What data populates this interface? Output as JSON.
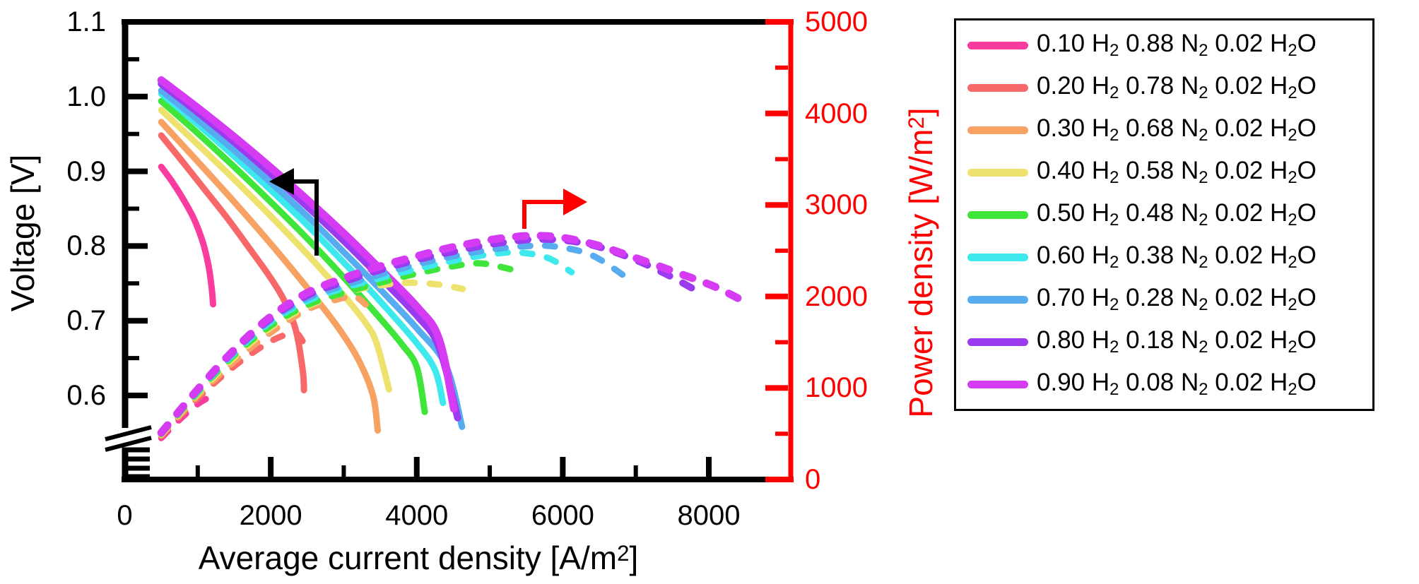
{
  "chart_data": {
    "type": "line",
    "title": "",
    "description": "Fuel cell polarization curves (solid, left axis) and power density curves (dashed, right axis) for varying anode gas compositions",
    "x_axis": {
      "label_parts": [
        [
          "Average current density [A/m",
          ""
        ],
        [
          "2",
          "sup"
        ],
        [
          "]",
          ""
        ]
      ],
      "range": [
        0,
        9120
      ],
      "major_tick_values": [
        0,
        2000,
        4000,
        6000,
        8000
      ],
      "minor_tick_values": [
        1000,
        3000,
        5000,
        7000
      ],
      "tick_labels": [
        "0",
        "2000",
        "4000",
        "6000",
        "8000"
      ]
    },
    "y_left_axis": {
      "label": "Voltage [V]",
      "color": "#000000",
      "visible_range": [
        0.6,
        1.1
      ],
      "major_tick_values": [
        1.1,
        1.0,
        0.9,
        0.8,
        0.7,
        0.6
      ],
      "minor_tick_values": [
        1.05,
        0.95,
        0.85,
        0.75,
        0.65
      ],
      "tick_labels": [
        "1.1",
        "1.0",
        "0.9",
        "0.8",
        "0.7",
        "0.6"
      ],
      "axis_break_below": 0.6
    },
    "y_right_axis": {
      "label_parts": [
        [
          "Power density [W/m",
          ""
        ],
        [
          "2",
          "sup"
        ],
        [
          "]",
          ""
        ]
      ],
      "color": "#FE0000",
      "range": [
        0,
        5000
      ],
      "major_tick_values": [
        0,
        1000,
        2000,
        3000,
        4000,
        5000
      ],
      "minor_tick_values": [
        500,
        1500,
        2500,
        3500,
        4500
      ],
      "tick_labels": [
        "0",
        "1000",
        "2000",
        "3000",
        "4000",
        "5000"
      ]
    },
    "annotations": [
      {
        "type": "arrow",
        "color": "#000000",
        "indicates": "solid curves read left voltage axis"
      },
      {
        "type": "arrow",
        "color": "#FE0000",
        "indicates": "dashed curves read right power axis"
      }
    ],
    "series": [
      {
        "label_parts": [
          [
            "0.10 H",
            ""
          ],
          [
            "2",
            "sub"
          ],
          [
            " 0.88 N",
            ""
          ],
          [
            "2",
            "sub"
          ],
          [
            " 0.02 H",
            ""
          ],
          [
            "2",
            "sub"
          ],
          [
            "O",
            ""
          ]
        ],
        "color": "#FA3C9E",
        "line_width": 9,
        "voltage_points": [
          [
            500,
            0.906
          ],
          [
            650,
            0.886
          ],
          [
            800,
            0.863
          ],
          [
            950,
            0.836
          ],
          [
            1070,
            0.805
          ],
          [
            1145,
            0.775
          ],
          [
            1190,
            0.745
          ],
          [
            1210,
            0.722
          ]
        ],
        "power_points": [
          [
            500,
            453
          ],
          [
            650,
            576
          ],
          [
            800,
            690
          ],
          [
            950,
            794
          ],
          [
            1070,
            861
          ],
          [
            1145,
            887
          ],
          [
            1210,
            872
          ]
        ]
      },
      {
        "label_parts": [
          [
            "0.20 H",
            ""
          ],
          [
            "2",
            "sub"
          ],
          [
            " 0.78 N",
            ""
          ],
          [
            "2",
            "sub"
          ],
          [
            " 0.02 H",
            ""
          ],
          [
            "2",
            "sub"
          ],
          [
            "O",
            ""
          ]
        ],
        "color": "#F86868",
        "line_width": 9,
        "voltage_points": [
          [
            500,
            0.948
          ],
          [
            800,
            0.912
          ],
          [
            1100,
            0.875
          ],
          [
            1400,
            0.838
          ],
          [
            1700,
            0.798
          ],
          [
            2000,
            0.757
          ],
          [
            2200,
            0.724
          ],
          [
            2350,
            0.685
          ],
          [
            2440,
            0.632
          ],
          [
            2455,
            0.607
          ]
        ],
        "power_points": [
          [
            500,
            474
          ],
          [
            800,
            730
          ],
          [
            1100,
            962
          ],
          [
            1400,
            1173
          ],
          [
            1700,
            1357
          ],
          [
            2000,
            1510
          ],
          [
            2200,
            1580
          ],
          [
            2350,
            1600
          ],
          [
            2455,
            1488
          ]
        ]
      },
      {
        "label_parts": [
          [
            "0.30 H",
            ""
          ],
          [
            "2",
            "sub"
          ],
          [
            " 0.68 N",
            ""
          ],
          [
            "2",
            "sub"
          ],
          [
            " 0.02 H",
            ""
          ],
          [
            "2",
            "sub"
          ],
          [
            "O",
            ""
          ]
        ],
        "color": "#F7A263",
        "line_width": 9,
        "voltage_points": [
          [
            500,
            0.966
          ],
          [
            1000,
            0.913
          ],
          [
            1500,
            0.859
          ],
          [
            2000,
            0.803
          ],
          [
            2500,
            0.744
          ],
          [
            2900,
            0.694
          ],
          [
            3200,
            0.648
          ],
          [
            3400,
            0.6
          ],
          [
            3465,
            0.553
          ]
        ],
        "power_points": [
          [
            500,
            483
          ],
          [
            1000,
            913
          ],
          [
            1500,
            1289
          ],
          [
            2000,
            1606
          ],
          [
            2500,
            1856
          ],
          [
            2900,
            1965
          ],
          [
            3150,
            1995
          ],
          [
            3300,
            1912
          ]
        ]
      },
      {
        "label_parts": [
          [
            "0.40 H",
            ""
          ],
          [
            "2",
            "sub"
          ],
          [
            " 0.58 N",
            ""
          ],
          [
            "2",
            "sub"
          ],
          [
            " 0.02 H",
            ""
          ],
          [
            "2",
            "sub"
          ],
          [
            "O",
            ""
          ]
        ],
        "color": "#EEE26E",
        "line_width": 9,
        "voltage_points": [
          [
            500,
            0.982
          ],
          [
            1000,
            0.936
          ],
          [
            1500,
            0.889
          ],
          [
            2000,
            0.84
          ],
          [
            2500,
            0.789
          ],
          [
            3000,
            0.734
          ],
          [
            3300,
            0.697
          ],
          [
            3450,
            0.67
          ],
          [
            3620,
            0.608
          ]
        ],
        "power_points": [
          [
            500,
            491
          ],
          [
            1000,
            936
          ],
          [
            1500,
            1334
          ],
          [
            2000,
            1660
          ],
          [
            2500,
            1890
          ],
          [
            3000,
            2040
          ],
          [
            3500,
            2120
          ],
          [
            3900,
            2150
          ],
          [
            4300,
            2130
          ],
          [
            4630,
            2082
          ]
        ]
      },
      {
        "label_parts": [
          [
            "0.50 H",
            ""
          ],
          [
            "2",
            "sub"
          ],
          [
            " 0.48 N",
            ""
          ],
          [
            "2",
            "sub"
          ],
          [
            " 0.02 H",
            ""
          ],
          [
            "2",
            "sub"
          ],
          [
            "O",
            ""
          ]
        ],
        "color": "#3FE53A",
        "line_width": 9,
        "voltage_points": [
          [
            500,
            0.994
          ],
          [
            1000,
            0.951
          ],
          [
            1500,
            0.906
          ],
          [
            2000,
            0.859
          ],
          [
            2500,
            0.81
          ],
          [
            3000,
            0.758
          ],
          [
            3500,
            0.703
          ],
          [
            3800,
            0.668
          ],
          [
            4000,
            0.638
          ],
          [
            4110,
            0.578
          ]
        ],
        "power_points": [
          [
            500,
            497
          ],
          [
            1000,
            951
          ],
          [
            1500,
            1359
          ],
          [
            2000,
            1680
          ],
          [
            2500,
            1905
          ],
          [
            3000,
            2040
          ],
          [
            3500,
            2150
          ],
          [
            4000,
            2250
          ],
          [
            4500,
            2330
          ],
          [
            4900,
            2360
          ],
          [
            5460,
            2262
          ]
        ]
      },
      {
        "label_parts": [
          [
            "0.60 H",
            ""
          ],
          [
            "2",
            "sub"
          ],
          [
            " 0.38 N",
            ""
          ],
          [
            "2",
            "sub"
          ],
          [
            " 0.02 H",
            ""
          ],
          [
            "2",
            "sub"
          ],
          [
            "O",
            ""
          ]
        ],
        "color": "#3DE9EC",
        "line_width": 9,
        "voltage_points": [
          [
            500,
            1.004
          ],
          [
            1000,
            0.963
          ],
          [
            1500,
            0.92
          ],
          [
            2000,
            0.875
          ],
          [
            2500,
            0.828
          ],
          [
            3000,
            0.778
          ],
          [
            3500,
            0.726
          ],
          [
            4000,
            0.67
          ],
          [
            4250,
            0.634
          ],
          [
            4360,
            0.59
          ]
        ],
        "power_points": [
          [
            500,
            502
          ],
          [
            1000,
            963
          ],
          [
            1500,
            1380
          ],
          [
            2000,
            1720
          ],
          [
            2500,
            1950
          ],
          [
            3000,
            2090
          ],
          [
            3500,
            2200
          ],
          [
            4000,
            2300
          ],
          [
            4500,
            2390
          ],
          [
            5000,
            2460
          ],
          [
            5400,
            2480
          ],
          [
            5800,
            2420
          ],
          [
            6120,
            2265
          ]
        ]
      },
      {
        "label_parts": [
          [
            "0.70 H",
            ""
          ],
          [
            "2",
            "sub"
          ],
          [
            " 0.28 N",
            ""
          ],
          [
            "2",
            "sub"
          ],
          [
            " 0.02 H",
            ""
          ],
          [
            "2",
            "sub"
          ],
          [
            "O",
            ""
          ]
        ],
        "color": "#57ACF0",
        "line_width": 9,
        "voltage_points": [
          [
            500,
            1.008
          ],
          [
            1000,
            0.969
          ],
          [
            1500,
            0.928
          ],
          [
            2000,
            0.885
          ],
          [
            2500,
            0.84
          ],
          [
            3000,
            0.792
          ],
          [
            3500,
            0.742
          ],
          [
            4000,
            0.69
          ],
          [
            4400,
            0.64
          ],
          [
            4620,
            0.558
          ]
        ],
        "power_points": [
          [
            500,
            504
          ],
          [
            1000,
            969
          ],
          [
            1500,
            1392
          ],
          [
            2000,
            1740
          ],
          [
            2500,
            1980
          ],
          [
            3000,
            2120
          ],
          [
            3500,
            2240
          ],
          [
            4000,
            2350
          ],
          [
            4500,
            2440
          ],
          [
            5000,
            2510
          ],
          [
            5500,
            2550
          ],
          [
            5900,
            2545
          ],
          [
            6400,
            2450
          ],
          [
            6890,
            2198
          ]
        ]
      },
      {
        "label_parts": [
          [
            "0.80 H",
            ""
          ],
          [
            "2",
            "sub"
          ],
          [
            " 0.18 N",
            ""
          ],
          [
            "2",
            "sub"
          ],
          [
            " 0.02 H",
            ""
          ],
          [
            "2",
            "sub"
          ],
          [
            "O",
            ""
          ]
        ],
        "color": "#9B3BEF",
        "line_width": 10,
        "voltage_points": [
          [
            500,
            1.017
          ],
          [
            1000,
            0.979
          ],
          [
            1500,
            0.939
          ],
          [
            2000,
            0.897
          ],
          [
            2500,
            0.853
          ],
          [
            3000,
            0.807
          ],
          [
            3500,
            0.758
          ],
          [
            4000,
            0.707
          ],
          [
            4300,
            0.666
          ],
          [
            4560,
            0.57
          ]
        ],
        "power_points": [
          [
            500,
            508
          ],
          [
            1000,
            979
          ],
          [
            1500,
            1409
          ],
          [
            2000,
            1760
          ],
          [
            2500,
            2010
          ],
          [
            3000,
            2160
          ],
          [
            3500,
            2290
          ],
          [
            4000,
            2400
          ],
          [
            4500,
            2490
          ],
          [
            5100,
            2580
          ],
          [
            5700,
            2625
          ],
          [
            6300,
            2580
          ],
          [
            6900,
            2430
          ],
          [
            7400,
            2250
          ],
          [
            7880,
            2042
          ]
        ]
      },
      {
        "label_parts": [
          [
            "0.90 H",
            ""
          ],
          [
            "2",
            "sub"
          ],
          [
            " 0.08 N",
            ""
          ],
          [
            "2",
            "sub"
          ],
          [
            " 0.02 H",
            ""
          ],
          [
            "2",
            "sub"
          ],
          [
            "O",
            ""
          ]
        ],
        "color": "#D53BF2",
        "line_width": 11,
        "voltage_points": [
          [
            500,
            1.022
          ],
          [
            1000,
            0.985
          ],
          [
            1500,
            0.946
          ],
          [
            2000,
            0.905
          ],
          [
            2500,
            0.862
          ],
          [
            3000,
            0.817
          ],
          [
            3500,
            0.769
          ],
          [
            4000,
            0.719
          ],
          [
            4300,
            0.677
          ],
          [
            4510,
            0.582
          ]
        ],
        "power_points": [
          [
            500,
            511
          ],
          [
            1000,
            985
          ],
          [
            1500,
            1419
          ],
          [
            2000,
            1780
          ],
          [
            2500,
            2040
          ],
          [
            3000,
            2200
          ],
          [
            3500,
            2330
          ],
          [
            4000,
            2440
          ],
          [
            4500,
            2540
          ],
          [
            5200,
            2640
          ],
          [
            5800,
            2660
          ],
          [
            6400,
            2575
          ],
          [
            7000,
            2420
          ],
          [
            7600,
            2250
          ],
          [
            8100,
            2100
          ],
          [
            8570,
            1908
          ]
        ]
      }
    ]
  }
}
